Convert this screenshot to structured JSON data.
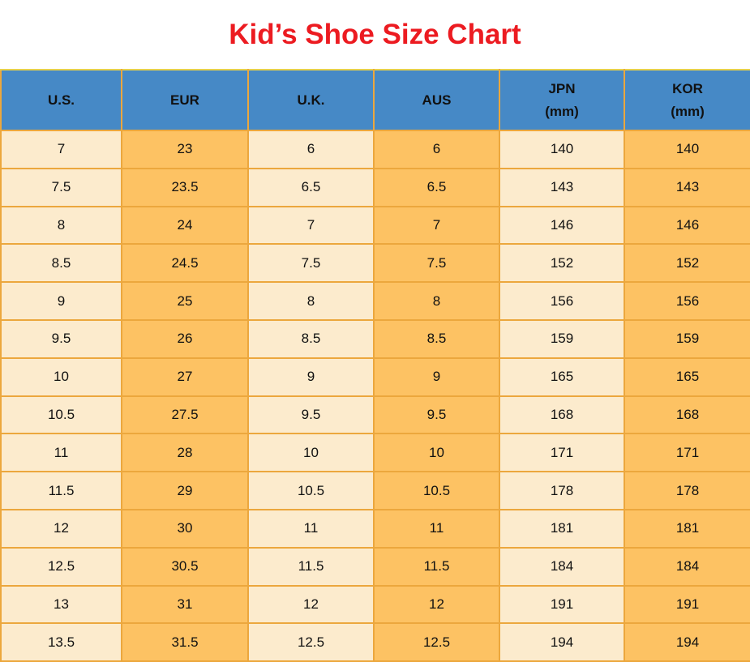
{
  "colors": {
    "title": "#EC1B21",
    "header_bg": "#4689C6",
    "column_light": "#FCEBCD",
    "column_dark": "#FDC263",
    "border": "#ECA73D",
    "top_border": "#E7D14B",
    "text": "#111111"
  },
  "chart_data": {
    "type": "table",
    "title": "Kid’s Shoe Size Chart",
    "columns": [
      {
        "key": "us",
        "label": "U.S.",
        "sublabel": ""
      },
      {
        "key": "eur",
        "label": "EUR",
        "sublabel": ""
      },
      {
        "key": "uk",
        "label": "U.K.",
        "sublabel": ""
      },
      {
        "key": "aus",
        "label": "AUS",
        "sublabel": ""
      },
      {
        "key": "jpn",
        "label": "JPN",
        "sublabel": "(mm)"
      },
      {
        "key": "kor",
        "label": "KOR",
        "sublabel": "(mm)"
      }
    ],
    "rows": [
      [
        "7",
        "23",
        "6",
        "6",
        "140",
        "140"
      ],
      [
        "7.5",
        "23.5",
        "6.5",
        "6.5",
        "143",
        "143"
      ],
      [
        "8",
        "24",
        "7",
        "7",
        "146",
        "146"
      ],
      [
        "8.5",
        "24.5",
        "7.5",
        "7.5",
        "152",
        "152"
      ],
      [
        "9",
        "25",
        "8",
        "8",
        "156",
        "156"
      ],
      [
        "9.5",
        "26",
        "8.5",
        "8.5",
        "159",
        "159"
      ],
      [
        "10",
        "27",
        "9",
        "9",
        "165",
        "165"
      ],
      [
        "10.5",
        "27.5",
        "9.5",
        "9.5",
        "168",
        "168"
      ],
      [
        "11",
        "28",
        "10",
        "10",
        "171",
        "171"
      ],
      [
        "11.5",
        "29",
        "10.5",
        "10.5",
        "178",
        "178"
      ],
      [
        "12",
        "30",
        "11",
        "11",
        "181",
        "181"
      ],
      [
        "12.5",
        "30.5",
        "11.5",
        "11.5",
        "184",
        "184"
      ],
      [
        "13",
        "31",
        "12",
        "12",
        "191",
        "191"
      ],
      [
        "13.5",
        "31.5",
        "12.5",
        "12.5",
        "194",
        "194"
      ]
    ]
  }
}
